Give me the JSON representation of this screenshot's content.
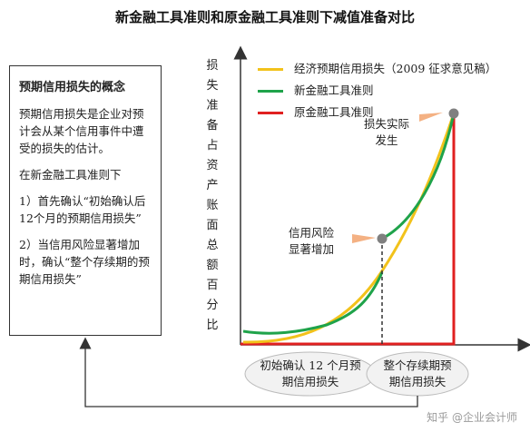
{
  "title": "新金融工具准则和原金融工具准则下减值准备对比",
  "concept": {
    "heading": "预期信用损失的概念",
    "definition": "预期信用损失是企业对预计会从某个信用事件中遭受的损失的估计。",
    "under_new": "在新金融工具准则下",
    "step1": "1）首先确认“初始确认后12个月的预期信用损失”",
    "step2": "2）当信用风险显著增加时，确认“整个存续期的预期信用损失”"
  },
  "y_axis_label": "损失准备占资产账面总额百分比",
  "legend": [
    {
      "label": "经济预期信用损失（2009 征求意见稿）",
      "color": "#f2c21b"
    },
    {
      "label": "新金融工具准则",
      "color": "#1fa34a"
    },
    {
      "label": "原金融工具准则",
      "color": "#e02020"
    }
  ],
  "annotations": {
    "loss_occurred": "损失实际发生",
    "credit_risk_increase": "信用风险显著增加"
  },
  "bottom_labels": {
    "initial_12m": "初始确认 12 个月预期信用损失",
    "lifetime": "整个存续期预期信用损失"
  },
  "watermark": "知乎 @企业会计师",
  "colors": {
    "marker": "#808080",
    "callout": "#f4b183",
    "ellipse_fill": "#f2f2f2"
  }
}
